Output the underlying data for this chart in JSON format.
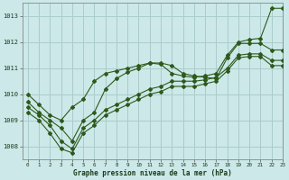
{
  "title": "Graphe pression niveau de la mer (hPa)",
  "background_color": "#cce8e8",
  "grid_color": "#aacccc",
  "line_color": "#2d5a1b",
  "xlim": [
    -0.5,
    23
  ],
  "ylim": [
    1007.5,
    1013.5
  ],
  "yticks": [
    1008,
    1009,
    1010,
    1011,
    1012,
    1013
  ],
  "xticks": [
    0,
    1,
    2,
    3,
    4,
    5,
    6,
    7,
    8,
    9,
    10,
    11,
    12,
    13,
    14,
    15,
    16,
    17,
    18,
    19,
    20,
    21,
    22,
    23
  ],
  "series": [
    {
      "x": [
        0,
        1,
        2,
        3,
        4,
        5,
        6,
        7,
        8,
        9,
        10,
        11,
        12,
        13,
        14,
        15,
        16,
        17,
        18,
        19,
        20,
        21,
        22,
        23
      ],
      "y": [
        1010.0,
        1009.6,
        1009.2,
        1009.0,
        1009.5,
        1009.8,
        1010.5,
        1010.8,
        1010.9,
        1011.0,
        1011.1,
        1011.2,
        1011.15,
        1010.8,
        1010.7,
        1010.65,
        1010.7,
        1010.8,
        1011.5,
        1012.0,
        1012.1,
        1012.15,
        1013.3,
        1013.3
      ],
      "has_marker": true
    },
    {
      "x": [
        0,
        1,
        2,
        3,
        4,
        5,
        6,
        7,
        8,
        9,
        10,
        11,
        12,
        13,
        14,
        15,
        16,
        17,
        18,
        19,
        20,
        21,
        22,
        23
      ],
      "y": [
        1009.7,
        1009.3,
        1009.0,
        1008.7,
        1008.2,
        1009.0,
        1009.3,
        1010.2,
        1010.6,
        1010.85,
        1011.0,
        1011.2,
        1011.2,
        1011.1,
        1010.8,
        1010.7,
        1010.65,
        1010.6,
        1011.4,
        1011.95,
        1011.95,
        1011.95,
        1011.7,
        1011.7
      ],
      "has_marker": true
    },
    {
      "x": [
        0,
        1,
        2,
        3,
        4,
        5,
        6,
        7,
        8,
        9,
        10,
        11,
        12,
        13,
        14,
        15,
        16,
        17,
        18,
        19,
        20,
        21,
        22,
        23
      ],
      "y": [
        1009.5,
        1009.2,
        1008.8,
        1008.2,
        1007.9,
        1008.7,
        1009.0,
        1009.4,
        1009.6,
        1009.8,
        1010.0,
        1010.2,
        1010.3,
        1010.5,
        1010.5,
        1010.5,
        1010.55,
        1010.65,
        1011.0,
        1011.5,
        1011.55,
        1011.55,
        1011.3,
        1011.3
      ],
      "has_marker": true
    },
    {
      "x": [
        0,
        1,
        2,
        3,
        4,
        5,
        6,
        7,
        8,
        9,
        10,
        11,
        12,
        13,
        14,
        15,
        16,
        17,
        18,
        19,
        20,
        21,
        22,
        23
      ],
      "y": [
        1009.3,
        1009.0,
        1008.5,
        1007.9,
        1007.75,
        1008.5,
        1008.8,
        1009.2,
        1009.4,
        1009.6,
        1009.8,
        1010.0,
        1010.1,
        1010.3,
        1010.3,
        1010.3,
        1010.4,
        1010.5,
        1010.9,
        1011.4,
        1011.45,
        1011.45,
        1011.1,
        1011.1
      ],
      "has_marker": true
    }
  ]
}
